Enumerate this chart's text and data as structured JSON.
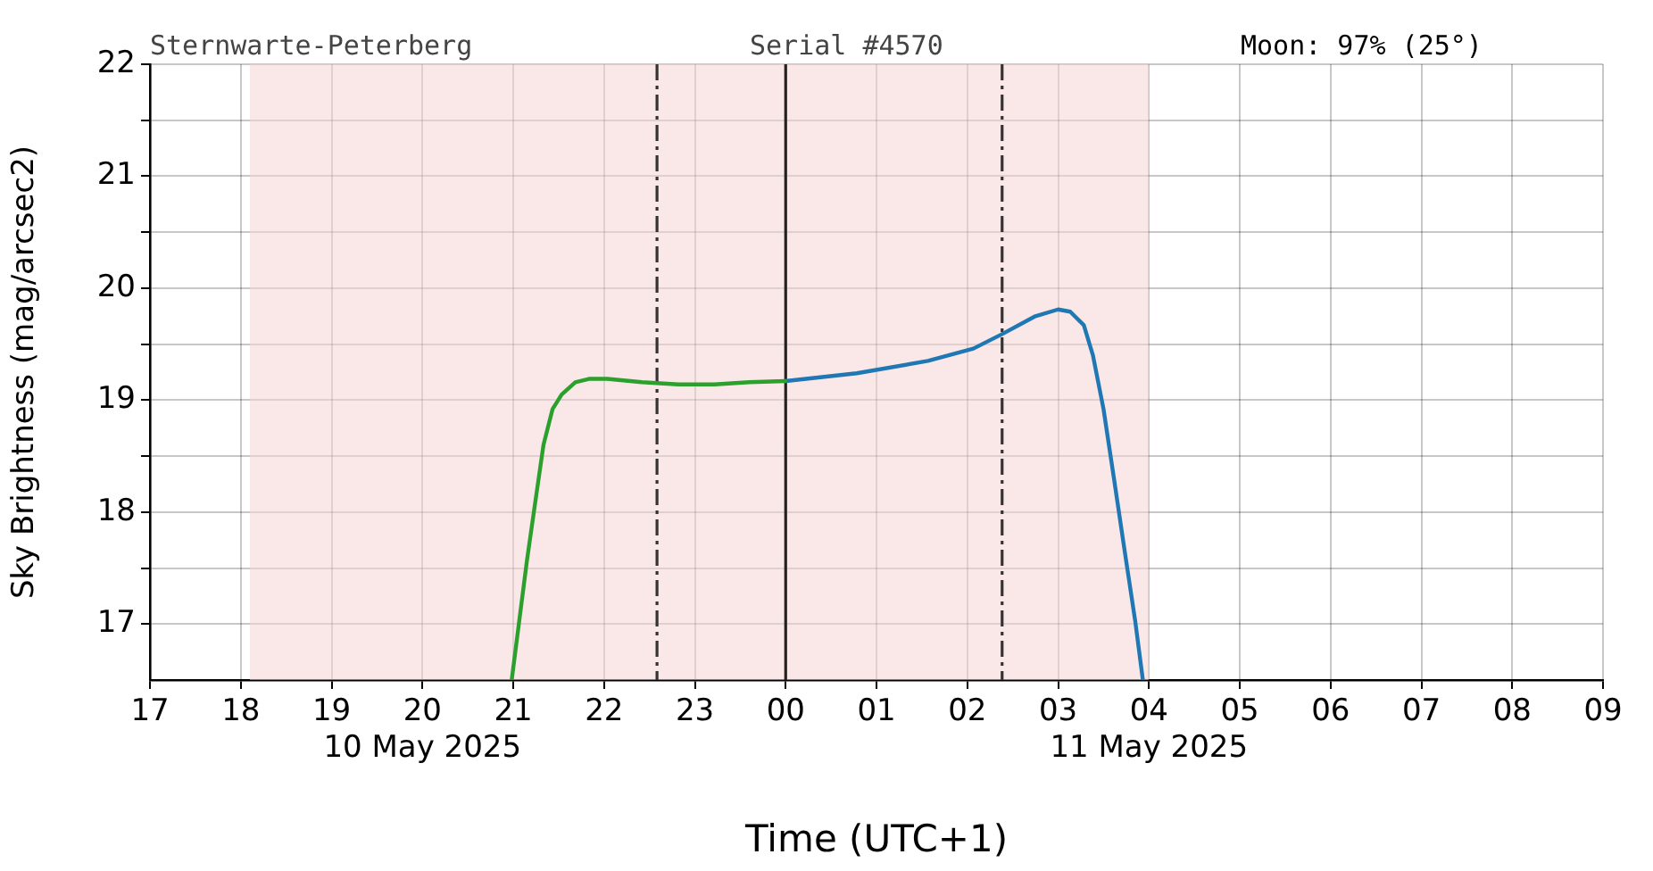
{
  "chart_data": {
    "type": "line",
    "xlabel": "Time (UTC+1)",
    "ylabel": "Sky Brightness (mag/arcsec2)",
    "annotations": [
      "Sternwarte-Peterberg",
      "Serial #4570",
      "Moon: 97% (25°)"
    ],
    "xlim": [
      "2025-05-10T17:00",
      "2025-05-11T09:00"
    ],
    "ylim": [
      16.5,
      22
    ],
    "xticks": [
      {
        "value": "2025-05-10T17:00",
        "label": "17"
      },
      {
        "value": "2025-05-10T18:00",
        "label": "18"
      },
      {
        "value": "2025-05-10T19:00",
        "label": "19"
      },
      {
        "value": "2025-05-10T20:00",
        "label": "20\n10 May 2025"
      },
      {
        "value": "2025-05-10T21:00",
        "label": "21"
      },
      {
        "value": "2025-05-10T22:00",
        "label": "22"
      },
      {
        "value": "2025-05-10T23:00",
        "label": "23"
      },
      {
        "value": "2025-05-11T00:00",
        "label": "00"
      },
      {
        "value": "2025-05-11T01:00",
        "label": "01"
      },
      {
        "value": "2025-05-11T02:00",
        "label": "02"
      },
      {
        "value": "2025-05-11T03:00",
        "label": "03"
      },
      {
        "value": "2025-05-11T04:00",
        "label": "04\n11 May 2025"
      },
      {
        "value": "2025-05-11T05:00",
        "label": "05"
      },
      {
        "value": "2025-05-11T06:00",
        "label": "06"
      },
      {
        "value": "2025-05-11T07:00",
        "label": "07"
      },
      {
        "value": "2025-05-11T08:00",
        "label": "08"
      },
      {
        "value": "2025-05-11T09:00",
        "label": "09"
      }
    ],
    "yticks": [
      17,
      {
        "value": 17.5,
        "label": null
      },
      18,
      {
        "value": 18.5,
        "label": null
      },
      19,
      {
        "value": 19.5,
        "label": null
      },
      20,
      {
        "value": 20.5,
        "label": null
      },
      21,
      {
        "value": 21.5,
        "label": null
      },
      22
    ],
    "grid": true,
    "bands": [
      {
        "axis": "x",
        "from": "2025-05-10T18:06",
        "to": "2025-05-11T04:00",
        "color": "#f5d5d5"
      }
    ],
    "ref_lines": [
      {
        "axis": "x",
        "value": "2025-05-10T22:35",
        "color": "#333333",
        "line_style": "dashdot"
      },
      {
        "axis": "x",
        "value": "2025-05-11T00:00",
        "color": "#222222",
        "line_style": "solid"
      },
      {
        "axis": "x",
        "value": "2025-05-11T02:23",
        "color": "#333333",
        "line_style": "dashdot"
      }
    ],
    "series": [
      {
        "color": "#2ca02c",
        "x": [
          "2025-05-10T20:59",
          "2025-05-10T21:09",
          "2025-05-10T21:15",
          "2025-05-10T21:20",
          "2025-05-10T21:26",
          "2025-05-10T21:32",
          "2025-05-10T21:41",
          "2025-05-10T21:50",
          "2025-05-10T22:02",
          "2025-05-10T22:25",
          "2025-05-10T22:49",
          "2025-05-10T23:13",
          "2025-05-10T23:36",
          "2025-05-11T00:00"
        ],
        "values": [
          16.5,
          17.56,
          18.13,
          18.6,
          18.92,
          19.05,
          19.16,
          19.19,
          19.19,
          19.16,
          19.14,
          19.14,
          19.16,
          19.17
        ]
      },
      {
        "color": "#1f77b4",
        "x": [
          "2025-05-11T00:00",
          "2025-05-11T00:47",
          "2025-05-11T01:34",
          "2025-05-11T02:04",
          "2025-05-11T02:23",
          "2025-05-11T02:45",
          "2025-05-11T03:00",
          "2025-05-11T03:08",
          "2025-05-11T03:17",
          "2025-05-11T03:23",
          "2025-05-11T03:30",
          "2025-05-11T03:37",
          "2025-05-11T03:44",
          "2025-05-11T03:51",
          "2025-05-11T03:56"
        ],
        "values": [
          19.17,
          19.24,
          19.35,
          19.46,
          19.59,
          19.75,
          19.81,
          19.79,
          19.67,
          19.4,
          18.92,
          18.29,
          17.65,
          17.02,
          16.5
        ]
      }
    ]
  }
}
